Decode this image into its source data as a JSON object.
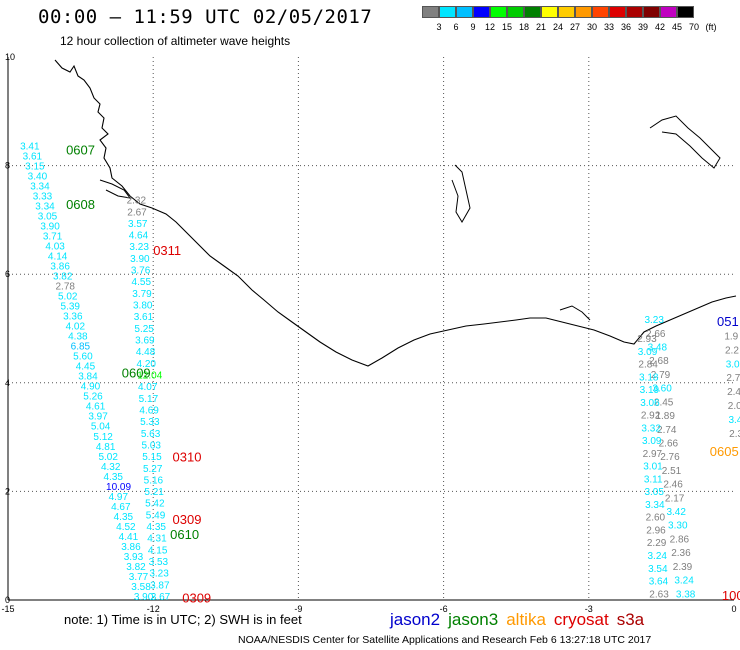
{
  "header": {
    "title": "00:00 – 11:59 UTC 02/05/2017",
    "subtitle": "12 hour collection of altimeter wave heights"
  },
  "colorbar": {
    "labels": [
      "3",
      "6",
      "9",
      "12",
      "15",
      "18",
      "21",
      "24",
      "27",
      "30",
      "33",
      "36",
      "39",
      "42",
      "45",
      "70",
      "(ft)"
    ],
    "colors": [
      "#808080",
      "#00e5ff",
      "#00bfff",
      "#0000ff",
      "#00ff00",
      "#00cc00",
      "#008000",
      "#ffff00",
      "#ffcc00",
      "#ff9900",
      "#ff4400",
      "#dd0000",
      "#aa0000",
      "#800000",
      "#c000c0",
      "#000000"
    ]
  },
  "axes": {
    "x_ticks": [
      "-15",
      "-12",
      "-9",
      "-6",
      "-3",
      "0"
    ],
    "y_ticks": [
      "10",
      "8",
      "6",
      "4",
      "2",
      "0"
    ],
    "x_range": [
      -15,
      0
    ],
    "y_range": [
      0,
      10
    ]
  },
  "footer": {
    "note": "note:  1) Time is in UTC;  2) SWH is in feet",
    "legend": [
      {
        "label": "jason2",
        "color": "#0000cc"
      },
      {
        "label": "jason3",
        "color": "#008000"
      },
      {
        "label": "altika",
        "color": "#ff9900"
      },
      {
        "label": "cryosat",
        "color": "#dd0000"
      },
      {
        "label": "s3a",
        "color": "#aa0000"
      }
    ],
    "credit": "NOAA/NESDIS Center for Satellite Applications and Research    Feb  6 13:27:18 UTC 2017"
  },
  "time_labels": [
    {
      "text": "0607",
      "lon": -13.8,
      "lat": 8.2,
      "color": "#008000"
    },
    {
      "text": "0608",
      "lon": -13.8,
      "lat": 7.2,
      "color": "#008000"
    },
    {
      "text": "0311",
      "lon": -12.0,
      "lat": 6.35,
      "color": "#dd0000"
    },
    {
      "text": "0609",
      "lon": -12.65,
      "lat": 4.1,
      "color": "#008000"
    },
    {
      "text": "0310",
      "lon": -11.6,
      "lat": 2.55,
      "color": "#dd0000"
    },
    {
      "text": "0309",
      "lon": -11.6,
      "lat": 1.4,
      "color": "#dd0000"
    },
    {
      "text": "0610",
      "lon": -11.65,
      "lat": 1.12,
      "color": "#008000"
    },
    {
      "text": "0309",
      "lon": -11.4,
      "lat": -0.05,
      "color": "#dd0000"
    },
    {
      "text": "051",
      "lon": -0.35,
      "lat": 5.05,
      "color": "#0000cc"
    },
    {
      "text": "0605",
      "lon": -0.5,
      "lat": 2.65,
      "color": "#ff9900"
    },
    {
      "text": "100",
      "lon": -0.25,
      "lat": 0.0,
      "color": "#dd0000"
    }
  ],
  "tracks": [
    {
      "name": "jason3-left",
      "lon_top": -14.75,
      "lat_top": 8.3,
      "lon_bot": -12.4,
      "lat_bot": 0.0,
      "values": [
        "3.41",
        "3.61",
        "3.15",
        "3.40",
        "3.34",
        "3.33",
        "3.34",
        "3.05",
        "3.90",
        "3.71",
        "4.03",
        "4.14",
        "3.86",
        "3.82",
        "2.78",
        "5.02",
        "5.39",
        "3.36",
        "4.02",
        "4.38",
        "6.85",
        "5.60",
        "4.45",
        "3.84",
        "4.90",
        "5.26",
        "4.61",
        "3.97",
        "5.04",
        "5.12",
        "4.81",
        "5.02",
        "4.32",
        "4.35",
        "10.09",
        "4.97",
        "4.67",
        "4.35",
        "4.52",
        "4.41",
        "3.86",
        "3.93",
        "3.82",
        "3.77",
        "3.58",
        "3.90"
      ],
      "colors": [
        "#00e5ff",
        "#00e5ff",
        "#00e5ff",
        "#00e5ff",
        "#00e5ff",
        "#00e5ff",
        "#00e5ff",
        "#00e5ff",
        "#00e5ff",
        "#00e5ff",
        "#00e5ff",
        "#00e5ff",
        "#00e5ff",
        "#00e5ff",
        "#808080",
        "#00e5ff",
        "#00e5ff",
        "#00e5ff",
        "#00e5ff",
        "#00e5ff",
        "#00bfff",
        "#00e5ff",
        "#00e5ff",
        "#00e5ff",
        "#00e5ff",
        "#00e5ff",
        "#00e5ff",
        "#00e5ff",
        "#00e5ff",
        "#00e5ff",
        "#00e5ff",
        "#00e5ff",
        "#00e5ff",
        "#00e5ff",
        "#0000ff",
        "#00e5ff",
        "#00e5ff",
        "#00e5ff",
        "#00e5ff",
        "#00e5ff",
        "#00e5ff",
        "#00e5ff",
        "#00e5ff",
        "#00e5ff",
        "#00e5ff",
        "#00e5ff"
      ]
    },
    {
      "name": "cryosat-left",
      "lon_top": -12.55,
      "lat_top": 7.3,
      "lon_bot": -12.05,
      "lat_bot": 0.0,
      "values": [
        "2.32",
        "2.67",
        "3.57",
        "4.64",
        "3.23",
        "3.90",
        "3.76",
        "4.55",
        "3.79",
        "3.80",
        "3.61",
        "5.25",
        "3.69",
        "4.48",
        "4.20",
        "12.04",
        "4.07",
        "5.17",
        "4.69",
        "5.33",
        "5.63",
        "5.03",
        "5.15",
        "5.27",
        "5.16",
        "5.21",
        "5.42",
        "5.49",
        "4.35",
        "4.31",
        "4.15",
        "3.53",
        "3.23",
        "3.87",
        "3.67"
      ],
      "colors": [
        "#808080",
        "#808080",
        "#00e5ff",
        "#00e5ff",
        "#00e5ff",
        "#00e5ff",
        "#00e5ff",
        "#00e5ff",
        "#00e5ff",
        "#00e5ff",
        "#00e5ff",
        "#00e5ff",
        "#00e5ff",
        "#00e5ff",
        "#00e5ff",
        "#00ff00",
        "#00e5ff",
        "#00e5ff",
        "#00e5ff",
        "#00e5ff",
        "#00e5ff",
        "#00e5ff",
        "#00e5ff",
        "#00e5ff",
        "#00e5ff",
        "#00e5ff",
        "#00e5ff",
        "#00e5ff",
        "#00e5ff",
        "#00e5ff",
        "#00e5ff",
        "#00e5ff",
        "#00e5ff",
        "#00e5ff",
        "#00e5ff"
      ]
    },
    {
      "name": "s3a-right",
      "lon_top": -1.85,
      "lat_top": 5.1,
      "lon_bot": -1.2,
      "lat_bot": 0.05,
      "values": [
        "3.23",
        "2.66",
        "3.48",
        "2.68",
        "2.79",
        "3.60",
        "2.45",
        "1.89",
        "2.74",
        "2.66",
        "2.76",
        "2.51",
        "2.46",
        "2.17",
        "3.42",
        "3.30",
        "2.86",
        "2.36",
        "2.39",
        "3.24",
        "3.38"
      ],
      "colors": [
        "#00e5ff",
        "#808080",
        "#00e5ff",
        "#808080",
        "#808080",
        "#00e5ff",
        "#808080",
        "#808080",
        "#808080",
        "#808080",
        "#808080",
        "#808080",
        "#808080",
        "#808080",
        "#00e5ff",
        "#00e5ff",
        "#808080",
        "#808080",
        "#808080",
        "#00e5ff",
        "#00e5ff"
      ]
    },
    {
      "name": "altika-right",
      "lon_top": -2.0,
      "lat_top": 4.75,
      "lon_bot": -1.75,
      "lat_bot": 0.05,
      "values": [
        "2.93",
        "3.09",
        "2.84",
        "3.18",
        "3.19",
        "3.06",
        "2.92",
        "3.32",
        "3.09",
        "2.97",
        "3.01",
        "3.11",
        "3.05",
        "3.34",
        "2.60",
        "2.96",
        "2.29",
        "3.24",
        "3.54",
        "3.64",
        "2.63"
      ],
      "colors": [
        "#808080",
        "#00e5ff",
        "#808080",
        "#00e5ff",
        "#00e5ff",
        "#00e5ff",
        "#808080",
        "#00e5ff",
        "#00e5ff",
        "#808080",
        "#00e5ff",
        "#00e5ff",
        "#00e5ff",
        "#00e5ff",
        "#808080",
        "#808080",
        "#808080",
        "#00e5ff",
        "#00e5ff",
        "#00e5ff",
        "#808080"
      ]
    },
    {
      "name": "far-right",
      "lon_top": -0.2,
      "lat_top": 4.8,
      "lon_bot": -0.1,
      "lat_bot": 3.0,
      "values": [
        "1.9",
        "2.2",
        "3.0",
        "2.7",
        "2.4",
        "2.0",
        "3.4",
        "2.3"
      ],
      "colors": [
        "#808080",
        "#808080",
        "#00e5ff",
        "#808080",
        "#808080",
        "#808080",
        "#00e5ff",
        "#808080"
      ]
    }
  ]
}
